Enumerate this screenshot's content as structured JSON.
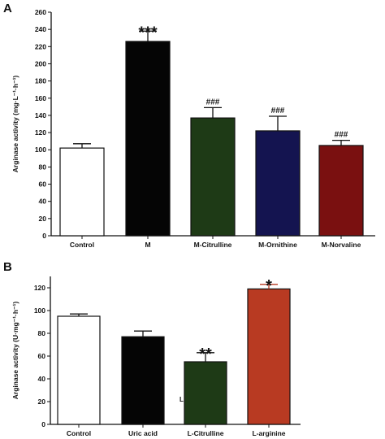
{
  "chart_data": [
    {
      "panel": "A",
      "type": "bar",
      "ylabel": "Arginase activity (mg·L⁻¹·h⁻¹)",
      "ylim": [
        0,
        260
      ],
      "yticks": [
        0,
        20,
        40,
        60,
        80,
        100,
        120,
        140,
        160,
        180,
        200,
        220,
        240,
        260
      ],
      "categories": [
        "Control",
        "M",
        "M-Citrulline",
        "M-Ornithine",
        "M-Norvaline"
      ],
      "values": [
        102,
        226,
        137,
        122,
        105
      ],
      "errors": [
        5,
        12,
        12,
        17,
        6
      ],
      "annotations": [
        "",
        "***",
        "###",
        "###",
        "###"
      ],
      "colors": [
        "#ffffff",
        "#050505",
        "#1e3a16",
        "#141450",
        "#7a1010"
      ],
      "grid": false
    },
    {
      "panel": "B",
      "type": "bar",
      "ylabel": "Arginase activity (U·mg⁻¹·h⁻¹)",
      "ylim": [
        0,
        130
      ],
      "yticks": [
        0,
        20,
        40,
        60,
        80,
        100,
        120
      ],
      "categories": [
        "Control",
        "Uric acid",
        "L-Citrulline",
        "L-arginine"
      ],
      "values": [
        95,
        77,
        55,
        119
      ],
      "errors": [
        2,
        5,
        8,
        4
      ],
      "annotations": [
        "",
        "",
        "**",
        "*"
      ],
      "colors": [
        "#ffffff",
        "#050505",
        "#1e3a16",
        "#b83a22"
      ],
      "stray_text": "L",
      "grid": false
    }
  ]
}
